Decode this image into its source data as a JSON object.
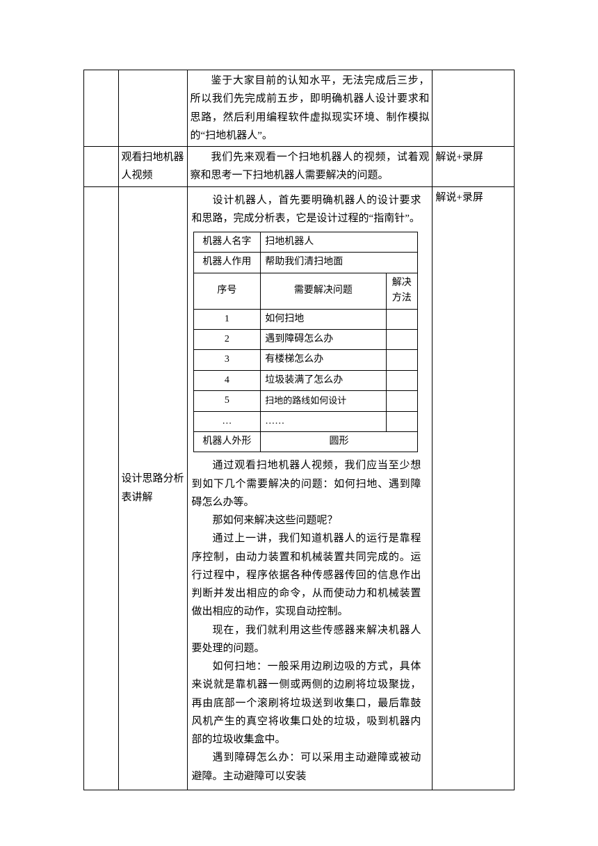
{
  "rows": [
    {
      "col1": "",
      "col2": "",
      "col3_paras": [
        "鉴于大家目前的认知水平，无法完成后三步，所以我们先完成前五步，即明确机器人设计要求和思路，然后利用编程软件虚拟现实环境、制作模拟的“扫地机器人”。"
      ],
      "col4": ""
    },
    {
      "col1": "",
      "col2": "观看扫地机器人视频",
      "col3_paras": [
        "我们先来观看一个扫地机器人的视频，试着观察和思考一下扫地机器人需要解决的问题。"
      ],
      "col4": "解说+录屏"
    }
  ],
  "row3": {
    "col1": "",
    "col2": "设计思路分析表讲解",
    "col4": "解说+录屏",
    "intro": "设计机器人，首先要明确机器人的设计要求和思路，完成分析表，它是设计过程的“指南针”。",
    "inner": {
      "name_label": "机器人名字",
      "name_value": "扫地机器人",
      "role_label": "机器人作用",
      "role_value": "帮助我们清扫地面",
      "seq_header": "序号",
      "q_header": "需要解决问题",
      "sol_header": "解决方法",
      "problems": [
        {
          "seq": "1",
          "q": "如何扫地",
          "sol": ""
        },
        {
          "seq": "2",
          "q": "遇到障碍怎么办",
          "sol": ""
        },
        {
          "seq": "3",
          "q": "有楼梯怎么办",
          "sol": ""
        },
        {
          "seq": "4",
          "q": "垃圾装满了怎么办",
          "sol": ""
        },
        {
          "seq": "5",
          "q": "扫地的路线如何设计",
          "sol": "",
          "small": true
        },
        {
          "seq": "…",
          "q": "……",
          "sol": ""
        }
      ],
      "shape_label": "机器人外形",
      "shape_value": "圆形"
    },
    "after_paras": [
      "通过观看扫地机器人视频，我们应当至少想到如下几个需要解决的问题：如何扫地、遇到障碍怎么办等。",
      "那如何来解决这些问题呢？",
      "通过上一讲，我们知道机器人的运行是靠程序控制，由动力装置和机械装置共同完成的。运行过程中，程序依据各种传感器传回的信息作出判断并发出相应的命令，从而使动力和机械装置做出相应的动作，实现自动控制。",
      "现在，我们就利用这些传感器来解决机器人要处理的问题。",
      "如何扫地：一般采用边刷边吸的方式，具体来说就是靠机器一侧或两侧的边刷将垃圾聚拢，再由底部一个滚刷将垃圾送到收集口，最后靠鼓风机产生的真空将收集口处的垃圾，吸到机器内部的垃圾收集盒中。",
      "遇到障碍怎么办：可以采用主动避障或被动避障。主动避障可以安装"
    ]
  }
}
